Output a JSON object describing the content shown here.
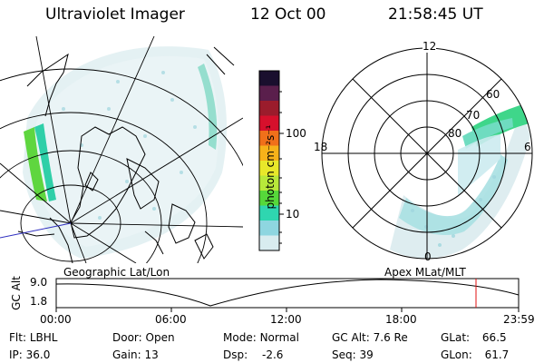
{
  "header": {
    "instrument": "Ultraviolet Imager",
    "date": "12 Oct 00",
    "time": "21:58:45 UT"
  },
  "left_panel": {
    "caption": "Geographic Lat/Lon"
  },
  "right_panel": {
    "caption": "Apex MLat/MLT",
    "mlt_labels": [
      "12",
      "18",
      "6",
      "0"
    ],
    "lat_labels": [
      "60",
      "70",
      "80"
    ]
  },
  "colorbar": {
    "unit_label": "photon cm⁻²s⁻¹",
    "tick_labels": [
      "100",
      "10"
    ],
    "colors": [
      "#1a0f2e",
      "#5a1f4c",
      "#9b1c2c",
      "#d6102c",
      "#f0701a",
      "#f6b21a",
      "#e8e82a",
      "#b8e83a",
      "#56d83a",
      "#2fd6b0",
      "#8ed6e0",
      "#d8ecef"
    ]
  },
  "timeline": {
    "y_label": "GC Alt",
    "y_ticks": [
      "9.0",
      "1.8"
    ],
    "x_ticks": [
      "00:00",
      "06:00",
      "12:00",
      "18:00",
      "23:59"
    ],
    "marker_color": "#e01010"
  },
  "info": {
    "flt_label": "Flt:",
    "flt_value": "LBHL",
    "ip_label": "IP:",
    "ip_value": "36.0",
    "door_label": "Door:",
    "door_value": "Open",
    "gain_label": "Gain:",
    "gain_value": "13",
    "mode_label": "Mode:",
    "mode_value": "Normal",
    "dsp_label": "Dsp:",
    "dsp_value": "-2.6",
    "gcalt_label": "GC Alt:",
    "gcalt_value": "7.6 Re",
    "seq_label": "Seq:",
    "seq_value": "39",
    "glat_label": "GLat:",
    "glat_value": "66.5",
    "glon_label": "GLon:",
    "glon_value": "61.7"
  }
}
